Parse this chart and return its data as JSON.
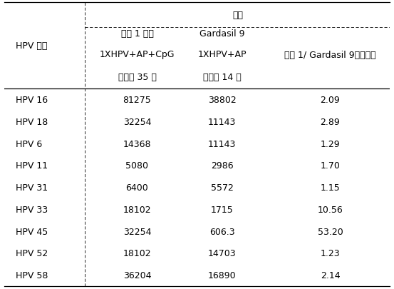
{
  "title_row": "组别",
  "header_col0": "HPV 型别",
  "col1_header1": "编号 1 疫苗",
  "col1_header2": "1XHPV+AP+CpG",
  "col1_header3": "两针后 35 天",
  "col2_header1": "Gardasil 9",
  "col2_header2": "1XHPV+AP",
  "col2_header3": "三针后 14 天",
  "col3_header": "编号 1/ Gardasil 9（倍数）",
  "rows": [
    [
      "HPV 16",
      "81275",
      "38802",
      "2.09"
    ],
    [
      "HPV 18",
      "32254",
      "11143",
      "2.89"
    ],
    [
      "HPV 6",
      "14368",
      "11143",
      "1.29"
    ],
    [
      "HPV 11",
      "5080",
      "2986",
      "1.70"
    ],
    [
      "HPV 31",
      "6400",
      "5572",
      "1.15"
    ],
    [
      "HPV 33",
      "18102",
      "1715",
      "10.56"
    ],
    [
      "HPV 45",
      "32254",
      "606.3",
      "53.20"
    ],
    [
      "HPV 52",
      "18102",
      "14703",
      "1.23"
    ],
    [
      "HPV 58",
      "36204",
      "16890",
      "2.14"
    ]
  ],
  "bg_color": "#ffffff",
  "text_color": "#000000",
  "font_size": 9,
  "header_font_size": 9
}
